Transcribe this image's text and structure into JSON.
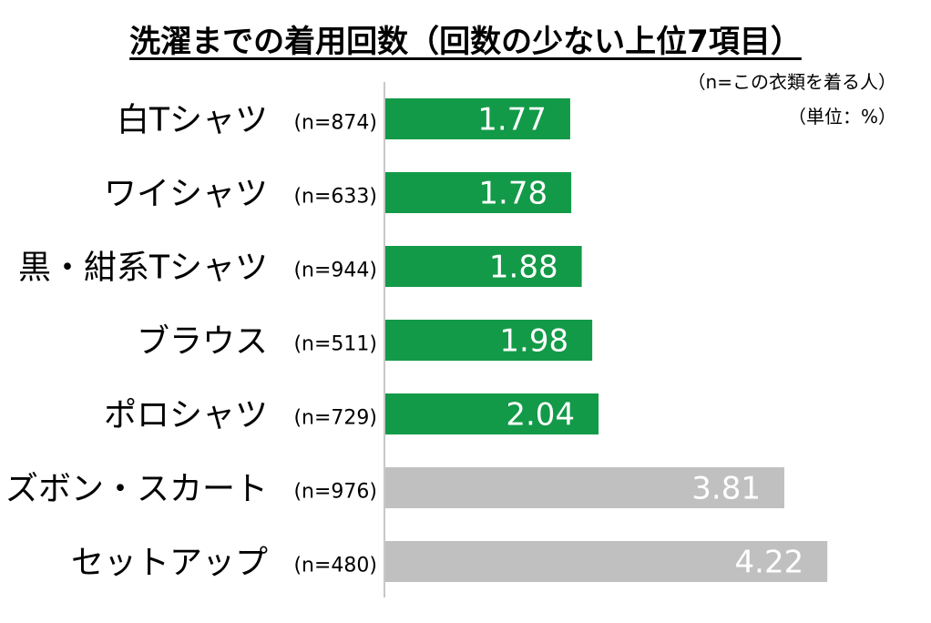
{
  "title": "洗濯までの着用回数（回数の少ない上位7項目）",
  "notes": [
    "（n=この衣類を着る人）",
    "（単位：%）"
  ],
  "colors": {
    "highlight": "#139a48",
    "other": "#c0c0c0",
    "axis": "#c8c8c8"
  },
  "chart_data": {
    "type": "bar",
    "orientation": "horizontal",
    "title": "洗濯までの着用回数（回数の少ない上位7項目）",
    "categories": [
      "白Tシャツ",
      "ワイシャツ",
      "黒・紺系Tシャツ",
      "ブラウス",
      "ポロシャツ",
      "ズボン・スカート",
      "セットアップ"
    ],
    "sample_sizes": [
      "(n=874)",
      "(n=633)",
      "(n=944)",
      "(n=511)",
      "(n=729)",
      "(n=976)",
      "(n=480)"
    ],
    "values": [
      1.77,
      1.78,
      1.88,
      1.98,
      2.04,
      3.81,
      4.22
    ],
    "value_labels": [
      "1.77",
      "1.78",
      "1.88",
      "1.98",
      "2.04",
      "3.81",
      "4.22"
    ],
    "highlighted": [
      true,
      true,
      true,
      true,
      true,
      false,
      false
    ],
    "xlim": [
      0,
      4.6
    ],
    "grid": false,
    "legend": "none"
  }
}
